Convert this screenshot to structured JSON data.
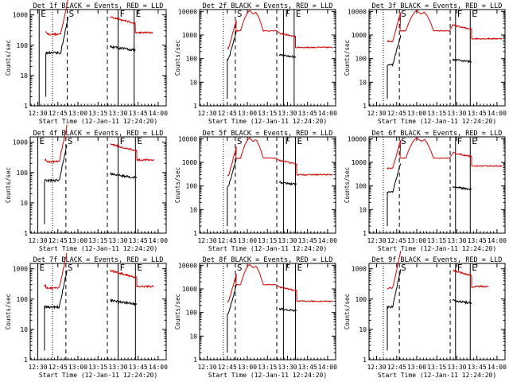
{
  "figure": {
    "background": "#ffffff",
    "event_color": "#000000",
    "lld_color": "#d40000"
  },
  "chart_data": [
    {
      "type": "line",
      "title": "Det 1f BLACK = Events, RED = LLD",
      "xlabel": "Start Time (12-Jan-11 12:24:20)",
      "ylabel": "Counts/sec",
      "xticks": [
        "12:30",
        "12:45",
        "13:00",
        "13:15",
        "13:30",
        "13:45",
        "14:00"
      ],
      "yticks": [
        "1",
        "10",
        "100",
        "1000"
      ],
      "yscale": "log",
      "ylim": [
        1,
        1500
      ],
      "markers": [
        {
          "label": "E",
          "t": "12:31",
          "style": "solid"
        },
        {
          "label": "",
          "t": "12:41",
          "style": "dotted"
        },
        {
          "label": "S",
          "t": "12:52",
          "style": "dashed"
        },
        {
          "label": "",
          "t": "13:22",
          "style": "dashed"
        },
        {
          "label": "F",
          "t": "13:30",
          "style": "solid"
        },
        {
          "label": "E",
          "t": "13:42",
          "style": "solid"
        }
      ],
      "series": [
        {
          "name": "Events",
          "color": "#000000"
        },
        {
          "name": "LLD",
          "color": "#d40000"
        }
      ]
    },
    {
      "type": "line",
      "title": "Det 2f BLACK = Events, RED = LLD",
      "xlabel": "Start Time (12-Jan-11 12:24:20)",
      "ylabel": "Counts/sec",
      "xticks": [
        "12:30",
        "12:45",
        "13:00",
        "13:15",
        "13:30",
        "13:45",
        "14:00"
      ],
      "yticks": [
        "1",
        "10",
        "100",
        "1000",
        "10000"
      ],
      "yscale": "log",
      "ylim": [
        1,
        12000
      ],
      "markers": [
        {
          "label": "",
          "t": "12:42",
          "style": "dotted"
        },
        {
          "label": "S",
          "t": "12:51",
          "style": "dashed"
        },
        {
          "label": "",
          "t": "13:22",
          "style": "dashed"
        },
        {
          "label": "F",
          "t": "13:27",
          "style": "solid"
        },
        {
          "label": "E",
          "t": "13:35",
          "style": "solid"
        }
      ],
      "series": [
        {
          "name": "Events",
          "color": "#000000"
        },
        {
          "name": "LLD",
          "color": "#d40000"
        }
      ]
    },
    {
      "type": "line",
      "title": "Det 3f BLACK = Events, RED = LLD",
      "xlabel": "Start Time (12-Jan-11 12:24:20)",
      "ylabel": "Counts/sec",
      "xticks": [
        "12:30",
        "12:45",
        "13:00",
        "13:15",
        "13:30",
        "13:45",
        "14:00"
      ],
      "yticks": [
        "1",
        "10",
        "100",
        "1000",
        "10000"
      ],
      "yscale": "log",
      "ylim": [
        1,
        12000
      ],
      "markers": [
        {
          "label": "",
          "t": "12:35",
          "style": "dotted"
        },
        {
          "label": "S",
          "t": "12:47",
          "style": "dashed"
        },
        {
          "label": "",
          "t": "13:25",
          "style": "dashed"
        },
        {
          "label": "F",
          "t": "13:29",
          "style": "solid"
        },
        {
          "label": "E",
          "t": "13:40",
          "style": "solid"
        }
      ],
      "series": [
        {
          "name": "Events",
          "color": "#000000"
        },
        {
          "name": "LLD",
          "color": "#d40000"
        }
      ]
    },
    {
      "type": "line",
      "title": "Det 4f BLACK = Events, RED = LLD",
      "xlabel": "Start Time (12-Jan-11 12:24:20)",
      "ylabel": "Counts/sec",
      "xticks": [
        "12:30",
        "12:45",
        "13:00",
        "13:15",
        "13:30",
        "13:45",
        "14:00"
      ],
      "yticks": [
        "1",
        "10",
        "100",
        "1000"
      ],
      "yscale": "log",
      "ylim": [
        1,
        1500
      ],
      "markers": [
        {
          "label": "E",
          "t": "12:30",
          "style": "solid"
        },
        {
          "label": "",
          "t": "12:41",
          "style": "dotted"
        },
        {
          "label": "S",
          "t": "12:51",
          "style": "dashed"
        },
        {
          "label": "",
          "t": "13:22",
          "style": "dashed"
        },
        {
          "label": "F",
          "t": "13:30",
          "style": "solid"
        },
        {
          "label": "E",
          "t": "13:43",
          "style": "solid"
        }
      ],
      "series": [
        {
          "name": "Events",
          "color": "#000000"
        },
        {
          "name": "LLD",
          "color": "#d40000"
        }
      ]
    },
    {
      "type": "line",
      "title": "Det 5f BLACK = Events, RED = LLD",
      "xlabel": "Start Time (12-Jan-11 12:24:20)",
      "ylabel": "Counts/sec",
      "xticks": [
        "12:30",
        "12:45",
        "13:00",
        "13:15",
        "13:30",
        "13:45",
        "14:00"
      ],
      "yticks": [
        "1",
        "10",
        "100",
        "1000",
        "10000"
      ],
      "yscale": "log",
      "ylim": [
        1,
        12000
      ],
      "markers": [
        {
          "label": "",
          "t": "12:42",
          "style": "dotted"
        },
        {
          "label": "S",
          "t": "12:51",
          "style": "dashed"
        },
        {
          "label": "",
          "t": "13:22",
          "style": "dashed"
        },
        {
          "label": "F",
          "t": "13:27",
          "style": "solid"
        },
        {
          "label": "E",
          "t": "13:36",
          "style": "solid"
        }
      ],
      "series": [
        {
          "name": "Events",
          "color": "#000000"
        },
        {
          "name": "LLD",
          "color": "#d40000"
        }
      ]
    },
    {
      "type": "line",
      "title": "Det 6f BLACK = Events, RED = LLD",
      "xlabel": "Start Time (12-Jan-11 12:24:20)",
      "ylabel": "Counts/sec",
      "xticks": [
        "12:30",
        "12:45",
        "13:00",
        "13:15",
        "13:30",
        "13:45",
        "14:00"
      ],
      "yticks": [
        "1",
        "10",
        "100",
        "1000",
        "10000"
      ],
      "yscale": "log",
      "ylim": [
        1,
        12000
      ],
      "markers": [
        {
          "label": "",
          "t": "12:35",
          "style": "dotted"
        },
        {
          "label": "S",
          "t": "12:47",
          "style": "dashed"
        },
        {
          "label": "",
          "t": "13:25",
          "style": "dashed"
        },
        {
          "label": "F",
          "t": "13:29",
          "style": "solid"
        },
        {
          "label": "E",
          "t": "13:40",
          "style": "solid"
        }
      ],
      "series": [
        {
          "name": "Events",
          "color": "#000000"
        },
        {
          "name": "LLD",
          "color": "#d40000"
        }
      ]
    },
    {
      "type": "line",
      "title": "Det 7f BLACK = Events, RED = LLD",
      "xlabel": "Start Time (12-Jan-11 12:24:20)",
      "ylabel": "Counts/sec",
      "xticks": [
        "12:30",
        "12:45",
        "13:00",
        "13:15",
        "13:30",
        "13:45",
        "14:00"
      ],
      "yticks": [
        "1",
        "10",
        "100",
        "1000"
      ],
      "yscale": "log",
      "ylim": [
        1,
        1500
      ],
      "markers": [
        {
          "label": "E",
          "t": "12:30",
          "style": "solid"
        },
        {
          "label": "",
          "t": "12:41",
          "style": "dotted"
        },
        {
          "label": "S",
          "t": "12:51",
          "style": "dashed"
        },
        {
          "label": "",
          "t": "13:22",
          "style": "dashed"
        },
        {
          "label": "F",
          "t": "13:30",
          "style": "solid"
        },
        {
          "label": "E",
          "t": "13:43",
          "style": "solid"
        }
      ],
      "series": [
        {
          "name": "Events",
          "color": "#000000"
        },
        {
          "name": "LLD",
          "color": "#d40000"
        }
      ]
    },
    {
      "type": "line",
      "title": "Det 8f BLACK = Events, RED = LLD",
      "xlabel": "Start Time (12-Jan-11 12:24:20)",
      "ylabel": "Counts/sec",
      "xticks": [
        "12:30",
        "12:45",
        "13:00",
        "13:15",
        "13:30",
        "13:45",
        "14:00"
      ],
      "yticks": [
        "1",
        "10",
        "100",
        "1000",
        "10000"
      ],
      "yscale": "log",
      "ylim": [
        1,
        12000
      ],
      "markers": [
        {
          "label": "",
          "t": "12:42",
          "style": "dotted"
        },
        {
          "label": "S",
          "t": "12:51",
          "style": "dashed"
        },
        {
          "label": "",
          "t": "13:22",
          "style": "dashed"
        },
        {
          "label": "F",
          "t": "13:27",
          "style": "solid"
        },
        {
          "label": "E",
          "t": "13:36",
          "style": "solid"
        }
      ],
      "series": [
        {
          "name": "Events",
          "color": "#000000"
        },
        {
          "name": "LLD",
          "color": "#d40000"
        }
      ]
    },
    {
      "type": "line",
      "title": "Det 9f BLACK = Events, RED = LLD",
      "xlabel": "Start Time (12-Jan-11 12:24:20)",
      "ylabel": "Counts/sec",
      "xticks": [
        "12:30",
        "12:45",
        "13:00",
        "13:15",
        "13:30",
        "13:45",
        "14:00"
      ],
      "yticks": [
        "1",
        "10",
        "100",
        "1000"
      ],
      "yscale": "log",
      "ylim": [
        1,
        1500
      ],
      "markers": [
        {
          "label": "",
          "t": "12:35",
          "style": "dotted"
        },
        {
          "label": "S",
          "t": "12:47",
          "style": "dashed"
        },
        {
          "label": "",
          "t": "13:25",
          "style": "dashed"
        },
        {
          "label": "F",
          "t": "13:29",
          "style": "solid"
        },
        {
          "label": "E",
          "t": "13:40",
          "style": "solid"
        }
      ],
      "series": [
        {
          "name": "Events",
          "color": "#000000"
        },
        {
          "name": "LLD",
          "color": "#d40000"
        }
      ]
    }
  ]
}
